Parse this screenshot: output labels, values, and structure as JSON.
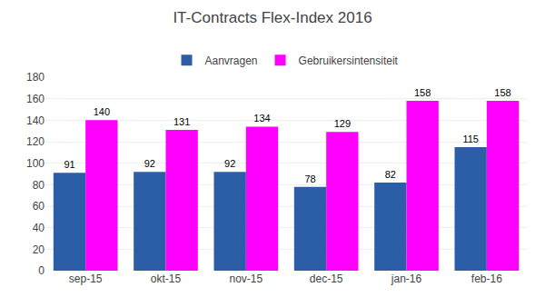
{
  "chart_data": {
    "type": "bar",
    "title": "IT-Contracts Flex-Index 2016",
    "categories": [
      "sep-15",
      "okt-15",
      "nov-15",
      "dec-15",
      "jan-16",
      "feb-16"
    ],
    "series": [
      {
        "name": "Aanvragen",
        "color": "#2B5EA7",
        "values": [
          91,
          92,
          92,
          78,
          82,
          115
        ]
      },
      {
        "name": "Gebruikersintensiteit",
        "color": "#FF00FF",
        "values": [
          140,
          131,
          134,
          129,
          158,
          158
        ]
      }
    ],
    "ylim": [
      0,
      180
    ],
    "yticks": [
      0,
      20,
      40,
      60,
      80,
      100,
      120,
      140,
      160,
      180
    ],
    "grid": true,
    "legend": "top",
    "data_labels": true
  }
}
